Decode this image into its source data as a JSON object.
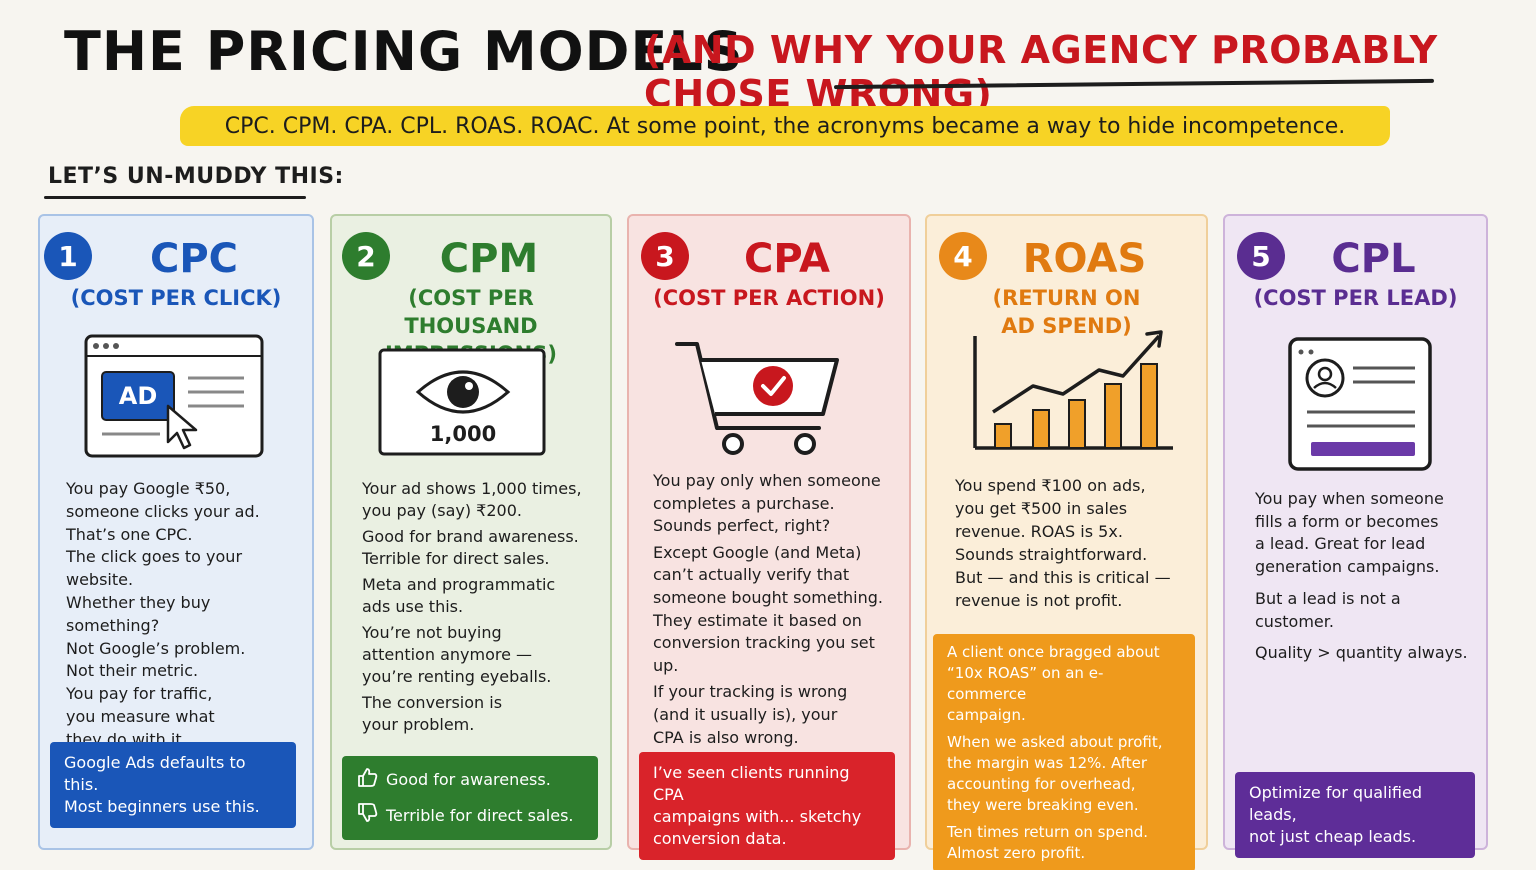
{
  "header": {
    "title": "THE PRICING MODELS",
    "subtitle": "(AND WHY YOUR AGENCY PROBABLY CHOSE WRONG)",
    "highlight": "CPC. CPM. CPA. CPL. ROAS. ROAC.  At some point, the acronyms became a way to hide incompetence.",
    "subhead": "LET’S UN-MUDDY THIS:"
  },
  "colors": {
    "blue": "#1a56b8",
    "green": "#2e7d2e",
    "red": "#c8171e",
    "orange": "#e8891a",
    "purple": "#5a2d91"
  },
  "cards": [
    {
      "number": "1",
      "title": "CPC",
      "subtitle": "(COST PER CLICK)",
      "illustration": "ad-click-icon",
      "ad_label": "AD",
      "body": [
        "You pay Google ₹50,",
        "someone clicks your ad.",
        "That’s one CPC.",
        "The click goes to your website.",
        "Whether they buy something?",
        "Not Google’s problem.",
        "Not their metric.",
        "You pay for traffic,",
        "you measure what",
        "they do with it."
      ],
      "note": [
        "Google Ads defaults to this.",
        "Most beginners use this."
      ]
    },
    {
      "number": "2",
      "title": "CPM",
      "subtitle_lines": [
        "(COST PER THOUSAND",
        "IMPRESSIONS)"
      ],
      "illustration": "eye-icon",
      "impressions_label": "1,000",
      "body_paras": [
        [
          "Your ad shows 1,000 times,",
          "you pay (say) ₹200."
        ],
        [
          "Good for brand awareness.",
          "Terrible for direct sales."
        ],
        [
          "Meta and programmatic",
          "ads use this."
        ],
        [
          "You’re not buying",
          "attention anymore —",
          "you’re renting eyeballs."
        ],
        [
          "The conversion is",
          "your problem."
        ]
      ],
      "note_up": "Good for awareness.",
      "note_down": "Terrible for direct sales."
    },
    {
      "number": "3",
      "title": "CPA",
      "subtitle": "(COST PER ACTION)",
      "illustration": "cart-check-icon",
      "body_paras": [
        [
          "You pay only when someone",
          "completes a purchase.",
          "Sounds perfect, right?"
        ],
        [
          "Except Google (and Meta)",
          "can’t actually verify that",
          "someone bought something.",
          "They estimate it based on",
          "conversion tracking you set up."
        ],
        [
          "If your tracking is wrong",
          "(and it usually is), your",
          "CPA is also wrong."
        ]
      ],
      "note": [
        "I’ve seen clients running CPA",
        "campaigns with... sketchy",
        "conversion data."
      ]
    },
    {
      "number": "4",
      "title": "ROAS",
      "subtitle_lines": [
        "(RETURN ON",
        "AD SPEND)"
      ],
      "illustration": "bar-chart-up-icon",
      "body": [
        "You spend ₹100 on ads,",
        "you get ₹500 in sales",
        "revenue. ROAS is 5x.",
        "Sounds straightforward.",
        "But — and this is critical —",
        "revenue is not profit."
      ],
      "note_paras": [
        [
          "A client once bragged about",
          "“10x ROAS” on an e-commerce",
          "campaign."
        ],
        [
          "When we asked about profit,",
          "the margin was 12%. After",
          "accounting for overhead,",
          "they were breaking even."
        ],
        [
          "Ten times return on spend.",
          "Almost zero profit."
        ]
      ]
    },
    {
      "number": "5",
      "title": "CPL",
      "subtitle": "(COST PER LEAD)",
      "illustration": "lead-form-icon",
      "body_paras": [
        [
          "You pay when someone",
          "fills a form or becomes",
          "a lead. Great for lead",
          "generation campaigns."
        ],
        [
          "But a lead is not a customer."
        ],
        [
          "Quality > quantity always."
        ]
      ],
      "note": [
        "Optimize for qualified leads,",
        "not just cheap leads."
      ]
    }
  ]
}
